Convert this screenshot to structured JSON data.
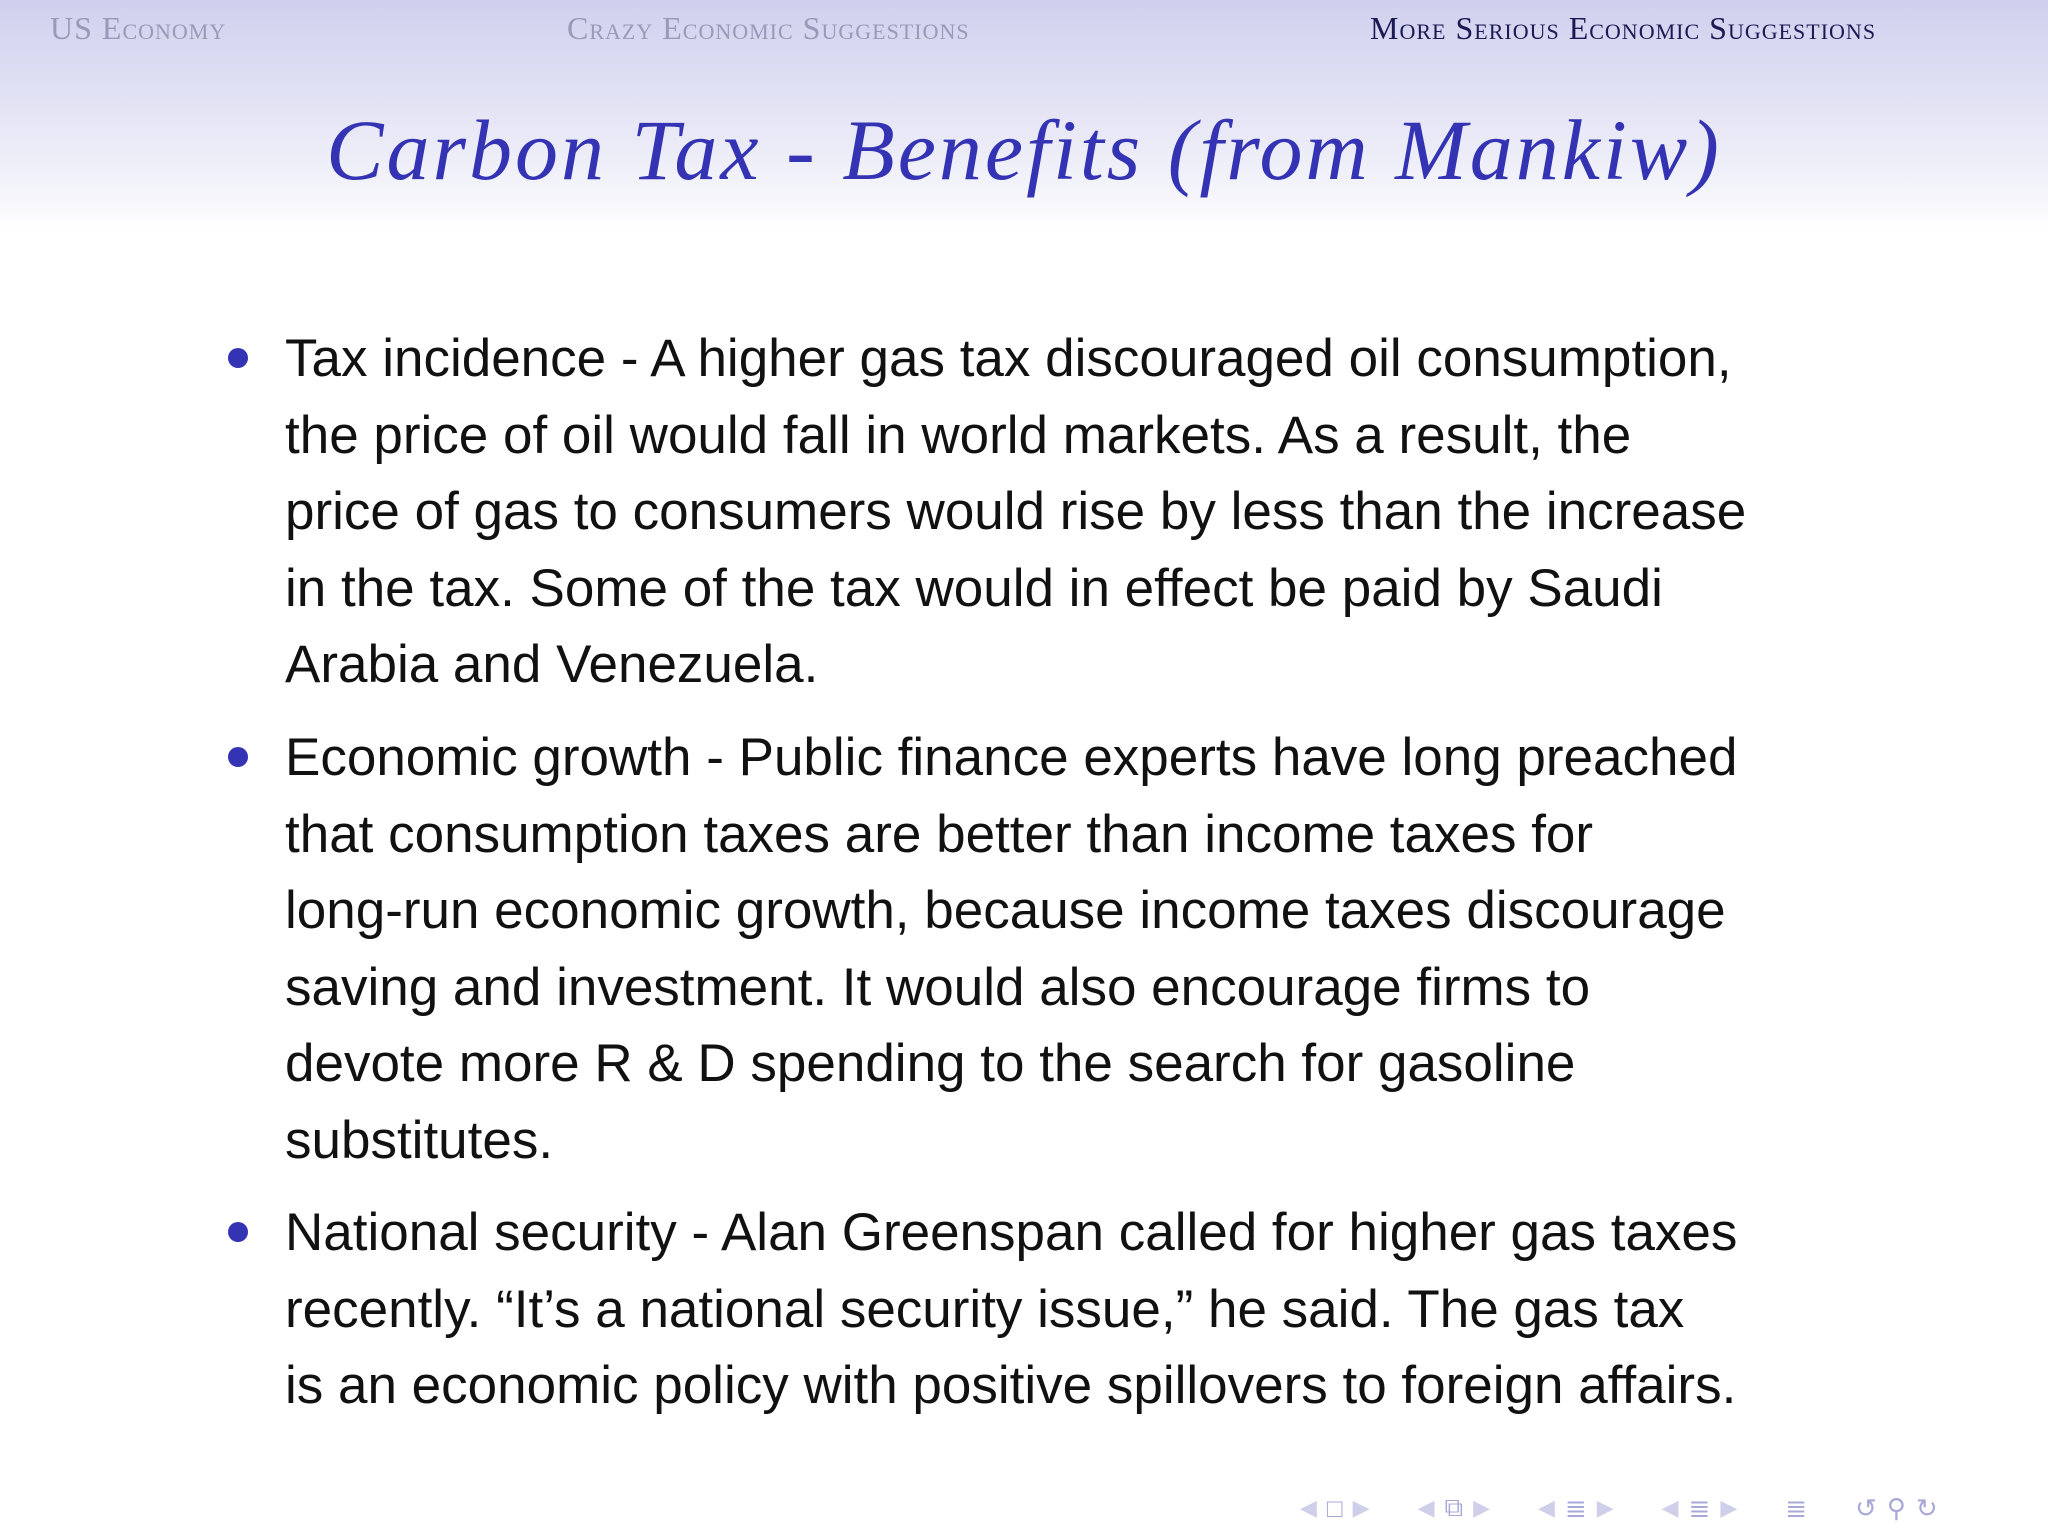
{
  "header": {
    "sections": [
      "US Economy",
      "Crazy Economic Suggestions",
      "More Serious Economic Suggestions"
    ],
    "current_section": "More Serious Economic Suggestions"
  },
  "slide": {
    "title": "Carbon Tax - Benefits (from Mankiw)",
    "bullets": [
      {
        "lines": [
          "Tax incidence - A higher gas tax discouraged oil consumption,",
          "the price of oil would fall in world markets.  As a result, the",
          "price of gas to consumers would rise by less than the increase",
          "in the tax.  Some of the tax would in effect be paid by Saudi",
          "Arabia and Venezuela."
        ]
      },
      {
        "lines": [
          "Economic growth - Public finance experts have long preached",
          "that consumption taxes are better than income taxes for",
          "long-run economic growth, because income taxes discourage",
          "saving and investment.  It would also encourage firms to",
          "devote more R & D spending to the search for gasoline",
          "substitutes."
        ]
      },
      {
        "lines": [
          "National security - Alan Greenspan called for higher gas taxes",
          "recently.  “It’s a national security issue,” he said.  The gas tax",
          "is an economic policy with positive spillovers to foreign affairs."
        ]
      }
    ]
  },
  "navigation": {
    "icons": [
      "prev-frame-icon",
      "frame-icon",
      "next-frame-icon",
      "prev-slide-icon",
      "slide-icon",
      "next-slide-icon",
      "prev-subsection-icon",
      "subsection-icon",
      "next-subsection-icon",
      "prev-section-icon",
      "section-icon",
      "next-section-icon",
      "document-icon",
      "back-icon",
      "search-icon",
      "forward-icon"
    ]
  },
  "colors": {
    "accent": "#3333b3",
    "header_current": "#1a1a55",
    "header_dim": "#9a9ab8",
    "nav_icons": "#a8a8d8"
  }
}
